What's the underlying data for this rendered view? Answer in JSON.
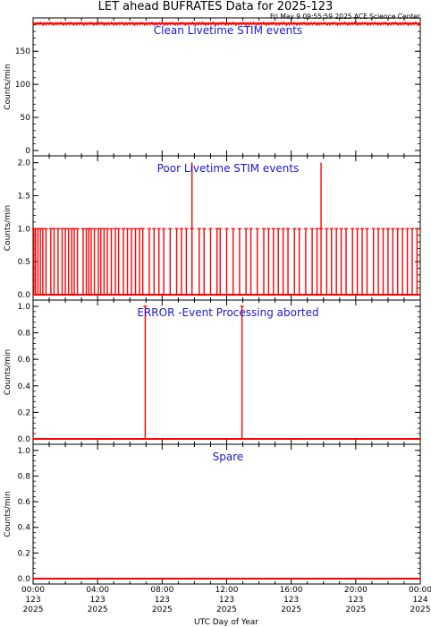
{
  "title": "LET ahead BUFRATES Data for 2025-123",
  "timestamp": "Fri May  9 09:55:59 2025 ACE Science Center",
  "xlabel": "UTC Day of Year",
  "colors": {
    "data": "#ff0000",
    "label": "#1a1acc",
    "axis": "#000000"
  },
  "x_ticks": [
    {
      "x": 0,
      "time": "00:00",
      "doy": "123",
      "year": "2025"
    },
    {
      "x": 4,
      "time": "04:00",
      "doy": "123",
      "year": "2025"
    },
    {
      "x": 8,
      "time": "08:00",
      "doy": "123",
      "year": "2025"
    },
    {
      "x": 12,
      "time": "12:00",
      "doy": "123",
      "year": "2025"
    },
    {
      "x": 16,
      "time": "16:00",
      "doy": "123",
      "year": "2025"
    },
    {
      "x": 20,
      "time": "20:00",
      "doy": "123",
      "year": "2025"
    },
    {
      "x": 24,
      "time": "00:00",
      "doy": "124",
      "year": "2025"
    }
  ],
  "chart_data": [
    {
      "type": "line",
      "label": "Clean Livetime STIM events",
      "ylabel": "Counts/min",
      "ylim": [
        0,
        195
      ],
      "yticks": [
        0,
        50,
        100,
        150
      ],
      "xlim": [
        0,
        24
      ],
      "series": [
        {
          "style": "band",
          "x": [
            0,
            24
          ],
          "y": [
            192,
            192
          ],
          "band_low": 189,
          "band_high": 194
        }
      ]
    },
    {
      "type": "line",
      "label": "Poor Livetime STIM events",
      "ylabel": "Counts/min",
      "ylim": [
        0,
        2.05
      ],
      "yticks": [
        0.0,
        0.5,
        1.0,
        1.5,
        2.0
      ],
      "xlim": [
        0,
        24
      ],
      "series": [
        {
          "style": "spikes",
          "baseline": 0,
          "spikes": [
            {
              "x": 0.05,
              "y": 1
            },
            {
              "x": 0.15,
              "y": 1
            },
            {
              "x": 0.3,
              "y": 1
            },
            {
              "x": 0.45,
              "y": 1
            },
            {
              "x": 0.6,
              "y": 1
            },
            {
              "x": 0.8,
              "y": 1
            },
            {
              "x": 1.1,
              "y": 1
            },
            {
              "x": 1.3,
              "y": 1
            },
            {
              "x": 1.55,
              "y": 1
            },
            {
              "x": 1.8,
              "y": 1
            },
            {
              "x": 2.0,
              "y": 1
            },
            {
              "x": 2.2,
              "y": 1
            },
            {
              "x": 2.4,
              "y": 1
            },
            {
              "x": 2.55,
              "y": 1
            },
            {
              "x": 2.75,
              "y": 1
            },
            {
              "x": 3.1,
              "y": 1
            },
            {
              "x": 3.3,
              "y": 1
            },
            {
              "x": 3.45,
              "y": 1
            },
            {
              "x": 3.6,
              "y": 1
            },
            {
              "x": 3.8,
              "y": 1
            },
            {
              "x": 4.05,
              "y": 1
            },
            {
              "x": 4.2,
              "y": 1
            },
            {
              "x": 4.4,
              "y": 1
            },
            {
              "x": 4.6,
              "y": 1
            },
            {
              "x": 4.85,
              "y": 1
            },
            {
              "x": 5.1,
              "y": 1
            },
            {
              "x": 5.3,
              "y": 1
            },
            {
              "x": 5.6,
              "y": 1
            },
            {
              "x": 5.85,
              "y": 1
            },
            {
              "x": 6.1,
              "y": 1
            },
            {
              "x": 6.35,
              "y": 1
            },
            {
              "x": 6.6,
              "y": 1
            },
            {
              "x": 6.8,
              "y": 1
            },
            {
              "x": 7.2,
              "y": 1
            },
            {
              "x": 7.5,
              "y": 1
            },
            {
              "x": 7.8,
              "y": 1
            },
            {
              "x": 8.1,
              "y": 1
            },
            {
              "x": 8.5,
              "y": 1
            },
            {
              "x": 8.9,
              "y": 1
            },
            {
              "x": 9.2,
              "y": 1
            },
            {
              "x": 9.5,
              "y": 1
            },
            {
              "x": 9.85,
              "y": 2
            },
            {
              "x": 10.3,
              "y": 1
            },
            {
              "x": 10.6,
              "y": 1
            },
            {
              "x": 11.0,
              "y": 1
            },
            {
              "x": 11.4,
              "y": 1
            },
            {
              "x": 11.6,
              "y": 1
            },
            {
              "x": 12.0,
              "y": 1
            },
            {
              "x": 12.4,
              "y": 1
            },
            {
              "x": 12.8,
              "y": 1
            },
            {
              "x": 13.2,
              "y": 1
            },
            {
              "x": 13.5,
              "y": 1
            },
            {
              "x": 13.9,
              "y": 1
            },
            {
              "x": 14.3,
              "y": 1
            },
            {
              "x": 14.6,
              "y": 1
            },
            {
              "x": 14.9,
              "y": 1
            },
            {
              "x": 15.2,
              "y": 1
            },
            {
              "x": 15.5,
              "y": 1
            },
            {
              "x": 15.8,
              "y": 1
            },
            {
              "x": 16.2,
              "y": 1
            },
            {
              "x": 16.5,
              "y": 1
            },
            {
              "x": 16.9,
              "y": 1
            },
            {
              "x": 17.3,
              "y": 1
            },
            {
              "x": 17.6,
              "y": 1
            },
            {
              "x": 17.85,
              "y": 2
            },
            {
              "x": 18.2,
              "y": 1
            },
            {
              "x": 18.5,
              "y": 1
            },
            {
              "x": 18.8,
              "y": 1
            },
            {
              "x": 19.1,
              "y": 1
            },
            {
              "x": 19.4,
              "y": 1
            },
            {
              "x": 19.8,
              "y": 1
            },
            {
              "x": 20.1,
              "y": 1
            },
            {
              "x": 20.4,
              "y": 1
            },
            {
              "x": 20.7,
              "y": 1
            },
            {
              "x": 21.1,
              "y": 1
            },
            {
              "x": 21.4,
              "y": 1
            },
            {
              "x": 21.7,
              "y": 1
            },
            {
              "x": 22.0,
              "y": 1
            },
            {
              "x": 22.3,
              "y": 1
            },
            {
              "x": 22.6,
              "y": 1
            },
            {
              "x": 22.9,
              "y": 1
            },
            {
              "x": 23.2,
              "y": 1
            },
            {
              "x": 23.5,
              "y": 1
            },
            {
              "x": 23.8,
              "y": 1
            }
          ]
        }
      ]
    },
    {
      "type": "line",
      "label": "ERROR -Event Processing aborted",
      "ylabel": "Counts/min",
      "ylim": [
        0,
        1.02
      ],
      "yticks": [
        0.0,
        0.2,
        0.4,
        0.6,
        0.8,
        1.0
      ],
      "xlim": [
        0,
        24
      ],
      "series": [
        {
          "style": "spikes",
          "baseline": 0,
          "spikes": [
            {
              "x": 6.95,
              "y": 1
            },
            {
              "x": 12.95,
              "y": 1
            }
          ]
        }
      ]
    },
    {
      "type": "line",
      "label": "Spare",
      "ylabel": "Counts/min",
      "ylim": [
        0,
        1.02
      ],
      "yticks": [
        0.0,
        0.2,
        0.4,
        0.6,
        0.8,
        1.0
      ],
      "xlim": [
        0,
        24
      ],
      "series": [
        {
          "style": "spikes",
          "baseline": 0,
          "spikes": []
        }
      ]
    }
  ]
}
